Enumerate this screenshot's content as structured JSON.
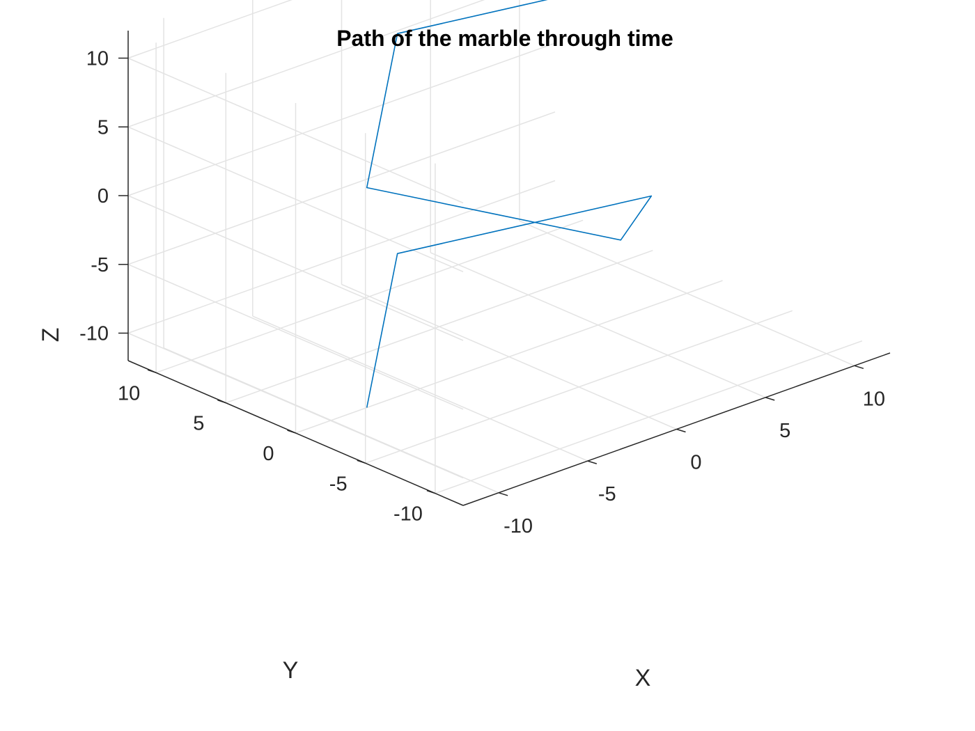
{
  "chart_data": {
    "type": "line",
    "title": "Path of the marble through time",
    "xlabel": "X",
    "ylabel": "Y",
    "zlabel": "Z",
    "xlim": [
      -12,
      12
    ],
    "ylim": [
      -12,
      12
    ],
    "zlim": [
      -12,
      12
    ],
    "xticks": [
      -10,
      -5,
      0,
      5,
      10
    ],
    "yticks": [
      -10,
      -5,
      0,
      5,
      10
    ],
    "zticks": [
      -10,
      -5,
      0,
      5,
      10
    ],
    "grid": true,
    "view": "3d",
    "series": [
      {
        "color": "#0072bd",
        "points": [
          {
            "x": -8,
            "y": 0,
            "z": -12
          },
          {
            "x": 0,
            "y": 8,
            "z": -8
          },
          {
            "x": 8,
            "y": 0,
            "z": -4
          },
          {
            "x": 0,
            "y": -8,
            "z": 0
          },
          {
            "x": -8,
            "y": 0,
            "z": 4
          },
          {
            "x": 0,
            "y": 8,
            "z": 8
          },
          {
            "x": 8,
            "y": 0,
            "z": 12
          }
        ]
      }
    ]
  }
}
